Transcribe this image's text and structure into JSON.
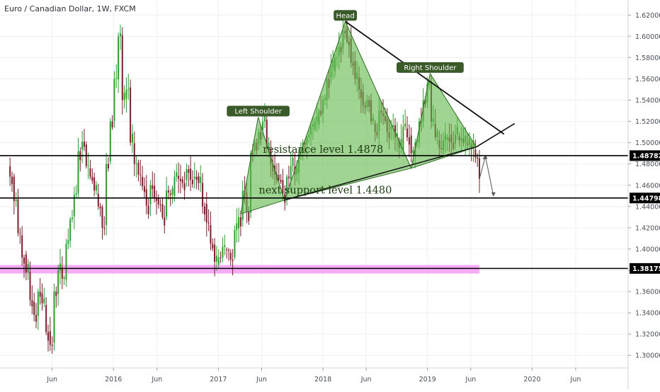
{
  "chart_data": {
    "type": "candlestick",
    "title": "Euro / Canadian Dollar, 1W, FXCM",
    "y_ticks": [
      "1.62000",
      "1.60000",
      "1.58000",
      "1.56000",
      "1.54000",
      "1.52000",
      "1.50000",
      "1.48000",
      "1.46000",
      "1.44000",
      "1.42000",
      "1.40000",
      "1.38000",
      "1.36000",
      "1.34000",
      "1.32000",
      "1.30000"
    ],
    "y_range": [
      1.29,
      1.625
    ],
    "x_ticks": [
      "Jun",
      "2016",
      "Jun",
      "2017",
      "Jun",
      "2018",
      "Jun",
      "2019",
      "Jun",
      "2020",
      "Jun"
    ],
    "x_range": [
      "2015-01",
      "2020-12"
    ],
    "grid": true,
    "series": [
      {
        "key": "weekly_close",
        "points": [
          [
            "2015-01-05",
            1.468
          ],
          [
            "2015-01-19",
            1.445
          ],
          [
            "2015-02-02",
            1.415
          ],
          [
            "2015-02-16",
            1.392
          ],
          [
            "2015-03-02",
            1.378
          ],
          [
            "2015-03-16",
            1.352
          ],
          [
            "2015-03-30",
            1.338
          ],
          [
            "2015-04-13",
            1.36
          ],
          [
            "2015-04-27",
            1.349
          ],
          [
            "2015-05-11",
            1.322
          ],
          [
            "2015-05-25",
            1.31
          ],
          [
            "2015-06-08",
            1.36
          ],
          [
            "2015-06-22",
            1.38
          ],
          [
            "2015-07-06",
            1.372
          ],
          [
            "2015-07-20",
            1.405
          ],
          [
            "2015-08-03",
            1.428
          ],
          [
            "2015-08-17",
            1.451
          ],
          [
            "2015-08-31",
            1.492
          ],
          [
            "2015-09-14",
            1.501
          ],
          [
            "2015-09-28",
            1.478
          ],
          [
            "2015-10-12",
            1.468
          ],
          [
            "2015-10-26",
            1.455
          ],
          [
            "2015-11-09",
            1.44
          ],
          [
            "2015-11-23",
            1.42
          ],
          [
            "2015-12-07",
            1.48
          ],
          [
            "2015-12-21",
            1.52
          ],
          [
            "2016-01-04",
            1.56
          ],
          [
            "2016-01-18",
            1.6
          ],
          [
            "2016-02-01",
            1.54
          ],
          [
            "2016-02-15",
            1.55
          ],
          [
            "2016-02-29",
            1.5
          ],
          [
            "2016-03-14",
            1.48
          ],
          [
            "2016-03-28",
            1.47
          ],
          [
            "2016-04-11",
            1.459
          ],
          [
            "2016-04-25",
            1.441
          ],
          [
            "2016-05-09",
            1.46
          ],
          [
            "2016-05-23",
            1.448
          ],
          [
            "2016-06-06",
            1.442
          ],
          [
            "2016-06-20",
            1.43
          ],
          [
            "2016-07-04",
            1.455
          ],
          [
            "2016-07-18",
            1.451
          ],
          [
            "2016-08-01",
            1.468
          ],
          [
            "2016-08-15",
            1.466
          ],
          [
            "2016-08-29",
            1.462
          ],
          [
            "2016-09-12",
            1.475
          ],
          [
            "2016-09-26",
            1.465
          ],
          [
            "2016-10-10",
            1.468
          ],
          [
            "2016-10-24",
            1.462
          ],
          [
            "2016-11-07",
            1.44
          ],
          [
            "2016-11-21",
            1.425
          ],
          [
            "2016-12-05",
            1.405
          ],
          [
            "2016-12-19",
            1.388
          ],
          [
            "2017-01-02",
            1.392
          ],
          [
            "2017-01-16",
            1.402
          ],
          [
            "2017-01-30",
            1.399
          ],
          [
            "2017-02-13",
            1.39
          ],
          [
            "2017-02-27",
            1.418
          ],
          [
            "2017-03-13",
            1.43
          ],
          [
            "2017-03-27",
            1.455
          ],
          [
            "2017-04-10",
            1.435
          ],
          [
            "2017-04-24",
            1.49
          ],
          [
            "2017-05-08",
            1.5
          ],
          [
            "2017-05-22",
            1.51
          ],
          [
            "2017-06-05",
            1.52
          ],
          [
            "2017-06-19",
            1.495
          ],
          [
            "2017-07-03",
            1.48
          ],
          [
            "2017-07-17",
            1.47
          ],
          [
            "2017-07-31",
            1.465
          ],
          [
            "2017-08-14",
            1.452
          ],
          [
            "2017-08-28",
            1.468
          ],
          [
            "2017-09-11",
            1.478
          ],
          [
            "2017-09-25",
            1.47
          ],
          [
            "2017-10-09",
            1.49
          ],
          [
            "2017-10-23",
            1.5
          ],
          [
            "2017-11-06",
            1.505
          ],
          [
            "2017-11-20",
            1.515
          ],
          [
            "2017-12-04",
            1.52
          ],
          [
            "2017-12-18",
            1.53
          ],
          [
            "2018-01-01",
            1.54
          ],
          [
            "2018-01-15",
            1.56
          ],
          [
            "2018-01-29",
            1.57
          ],
          [
            "2018-02-12",
            1.58
          ],
          [
            "2018-02-26",
            1.59
          ],
          [
            "2018-03-12",
            1.605
          ],
          [
            "2018-03-26",
            1.595
          ],
          [
            "2018-04-09",
            1.575
          ],
          [
            "2018-04-23",
            1.56
          ],
          [
            "2018-05-07",
            1.55
          ],
          [
            "2018-05-21",
            1.535
          ],
          [
            "2018-06-04",
            1.54
          ],
          [
            "2018-06-18",
            1.52
          ],
          [
            "2018-07-02",
            1.51
          ],
          [
            "2018-07-16",
            1.53
          ],
          [
            "2018-07-30",
            1.525
          ],
          [
            "2018-08-13",
            1.51
          ],
          [
            "2018-08-27",
            1.515
          ],
          [
            "2018-09-10",
            1.505
          ],
          [
            "2018-09-24",
            1.495
          ],
          [
            "2018-10-08",
            1.515
          ],
          [
            "2018-10-22",
            1.505
          ],
          [
            "2018-11-05",
            1.49
          ],
          [
            "2018-11-19",
            1.5
          ],
          [
            "2018-12-03",
            1.52
          ],
          [
            "2018-12-17",
            1.54
          ],
          [
            "2018-12-31",
            1.555
          ],
          [
            "2019-01-14",
            1.52
          ],
          [
            "2019-01-28",
            1.505
          ],
          [
            "2019-02-11",
            1.495
          ],
          [
            "2019-02-25",
            1.502
          ],
          [
            "2019-03-11",
            1.505
          ],
          [
            "2019-03-25",
            1.5
          ],
          [
            "2019-04-08",
            1.508
          ],
          [
            "2019-04-22",
            1.502
          ],
          [
            "2019-05-06",
            1.5
          ],
          [
            "2019-05-20",
            1.498
          ],
          [
            "2019-06-03",
            1.494
          ],
          [
            "2019-06-17",
            1.486
          ],
          [
            "2019-07-01",
            1.466
          ]
        ]
      },
      {
        "key": "projection",
        "points": [
          [
            "2019-07-01",
            1.466
          ],
          [
            "2019-07-22",
            1.487
          ],
          [
            "2019-08-19",
            1.45
          ]
        ]
      }
    ],
    "horizontal_levels": [
      {
        "value": 1.48782,
        "label": "1.48782"
      },
      {
        "value": 1.44798,
        "label": "1.44798"
      },
      {
        "value": 1.38175,
        "label": "1.38175"
      }
    ],
    "support_zone": {
      "from": 1.377,
      "to": 1.385,
      "x_start": "2015-01",
      "x_end": "2019-07-01",
      "color": "#f39cf3"
    },
    "pattern": {
      "name": "head and shoulders",
      "shapes": [
        {
          "points": [
            [
              "2017-03-20",
              1.433
            ],
            [
              "2017-05-20",
              1.524
            ],
            [
              "2017-08-20",
              1.446
            ]
          ]
        },
        {
          "points": [
            [
              "2017-08-20",
              1.446
            ],
            [
              "2018-03-20",
              1.614
            ],
            [
              "2018-11-05",
              1.476
            ]
          ]
        },
        {
          "points": [
            [
              "2018-11-05",
              1.476
            ],
            [
              "2019-01-10",
              1.565
            ],
            [
              "2019-06-20",
              1.496
            ]
          ]
        }
      ],
      "neckline": [
        [
          "2017-08-20",
          1.446
        ],
        [
          "2019-06-20",
          1.496
        ]
      ],
      "upper_line": [
        [
          "2018-03-20",
          1.614
        ],
        [
          "2019-09-25",
          1.508
        ]
      ],
      "trend_line": [
        [
          "2019-06-20",
          1.496
        ],
        [
          "2019-11-01",
          1.518
        ]
      ]
    },
    "labels": [
      {
        "text": "Head",
        "x": "2018-03-20",
        "y": 1.614,
        "kind": "badge"
      },
      {
        "text": "Right Shoulder",
        "x": "2019-01-10",
        "y": 1.565,
        "kind": "badge"
      },
      {
        "text": "Left Shoulder",
        "x": "2017-05-20",
        "y": 1.524,
        "kind": "badge"
      },
      {
        "text": "resistance level 1.4878",
        "x": "2017-06-05",
        "y": 1.489,
        "kind": "annotation"
      },
      {
        "text": "next support level 1.4480",
        "x": "2017-05-22",
        "y": 1.451,
        "kind": "annotation"
      }
    ],
    "colors": {
      "up": "#2e9e2e",
      "down": "#7a1f2b",
      "pattern_fill": "#5fb84a",
      "line": "#111111",
      "badge": "#3a5a2a"
    }
  }
}
